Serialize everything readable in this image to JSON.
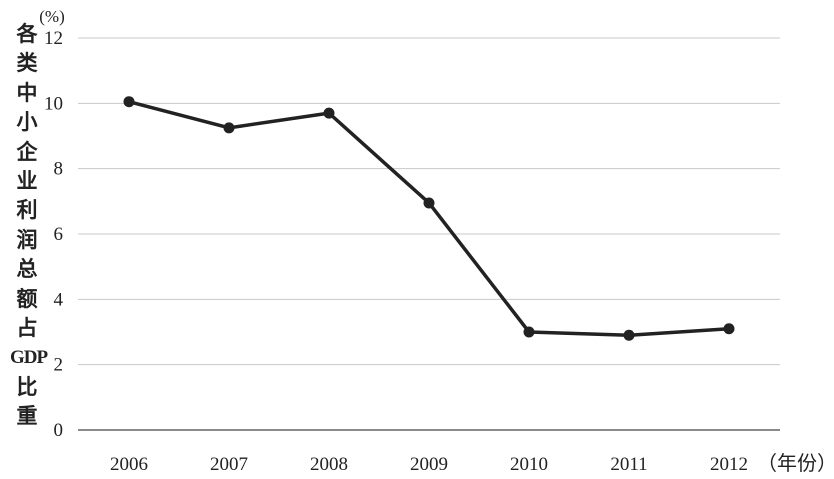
{
  "chart_data": {
    "type": "line",
    "categories": [
      "2006",
      "2007",
      "2008",
      "2009",
      "2010",
      "2011",
      "2012"
    ],
    "series": [
      {
        "values": [
          10.05,
          9.25,
          9.7,
          6.95,
          3.0,
          2.9,
          3.1
        ]
      }
    ],
    "y_unit": "(%)",
    "ylabel": "各类中小企业利润总额占GDP比重",
    "x_unit": "（年份）",
    "yticks": [
      "0",
      "2",
      "4",
      "6",
      "8",
      "10",
      "12"
    ],
    "ylim": [
      0,
      12
    ],
    "grid": true,
    "legend": "none",
    "colors": {
      "line": "#222222",
      "grid": "#c8c8c8",
      "axis": "#444444"
    }
  }
}
